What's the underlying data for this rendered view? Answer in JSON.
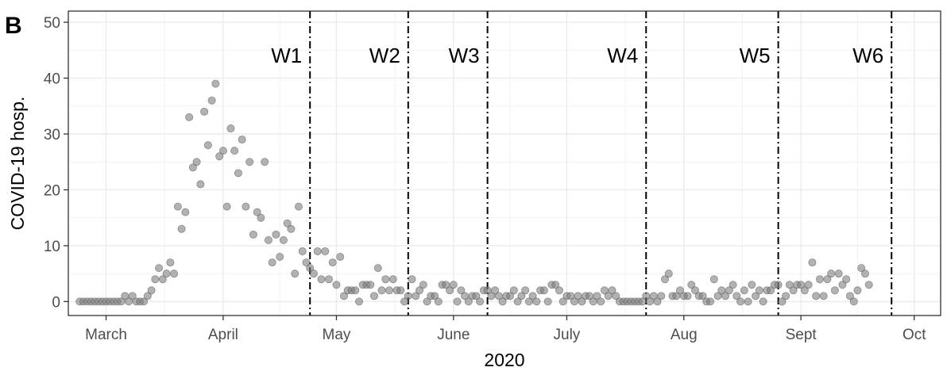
{
  "panel_label": "B",
  "chart_data": {
    "type": "scatter",
    "xlabel": "2020",
    "ylabel": "COVID-19 hosp.",
    "x_unit": "date",
    "xlim": [
      "2020-02-20",
      "2020-10-08"
    ],
    "ylim": [
      -2.5,
      52
    ],
    "y_ticks": [
      0,
      10,
      20,
      30,
      40,
      50
    ],
    "x_ticks": [
      {
        "date": "2020-03-01",
        "label": "March"
      },
      {
        "date": "2020-04-01",
        "label": "April"
      },
      {
        "date": "2020-05-01",
        "label": "May"
      },
      {
        "date": "2020-06-01",
        "label": "June"
      },
      {
        "date": "2020-07-01",
        "label": "July"
      },
      {
        "date": "2020-08-01",
        "label": "Aug"
      },
      {
        "date": "2020-09-01",
        "label": "Sept"
      },
      {
        "date": "2020-10-01",
        "label": "Oct"
      }
    ],
    "grid": true,
    "point_color": "#7f7f7f",
    "vlines": [
      {
        "label": "W1",
        "date": "2020-04-24"
      },
      {
        "label": "W2",
        "date": "2020-05-20"
      },
      {
        "label": "W3",
        "date": "2020-06-10"
      },
      {
        "label": "W4",
        "date": "2020-07-22"
      },
      {
        "label": "W5",
        "date": "2020-08-26"
      },
      {
        "label": "W6",
        "date": "2020-09-25"
      }
    ],
    "start_date": "2020-02-23",
    "values": [
      0,
      0,
      0,
      0,
      0,
      0,
      0,
      0,
      0,
      0,
      0,
      0,
      1,
      0,
      1,
      0,
      0,
      0,
      1,
      2,
      4,
      6,
      4,
      5,
      7,
      5,
      17,
      13,
      16,
      33,
      24,
      25,
      21,
      34,
      28,
      36,
      39,
      26,
      27,
      17,
      31,
      27,
      23,
      29,
      17,
      25,
      12,
      16,
      15,
      25,
      11,
      7,
      12,
      8,
      11,
      14,
      13,
      5,
      17,
      9,
      7,
      6,
      5,
      9,
      4,
      9,
      4,
      7,
      3,
      8,
      1,
      2,
      2,
      2,
      0,
      3,
      3,
      3,
      1,
      6,
      2,
      4,
      2,
      4,
      2,
      2,
      0,
      1,
      4,
      1,
      2,
      3,
      0,
      1,
      1,
      0,
      3,
      3,
      2,
      3,
      0,
      2,
      1,
      0,
      1,
      1,
      0,
      2,
      2,
      1,
      2,
      1,
      0,
      1,
      1,
      2,
      0,
      1,
      2,
      0,
      1,
      0,
      2,
      2,
      0,
      3,
      3,
      2,
      0,
      1,
      1,
      0,
      1,
      0,
      1,
      1,
      0,
      1,
      0,
      2,
      1,
      2,
      1,
      0,
      0,
      0,
      0,
      0,
      0,
      0,
      1,
      0,
      1,
      0,
      1,
      4,
      5,
      1,
      1,
      2,
      1,
      1,
      3,
      2,
      1,
      1,
      0,
      0,
      4,
      1,
      2,
      1,
      2,
      3,
      1,
      0,
      2,
      0,
      3,
      1,
      2,
      0,
      2,
      2,
      3,
      3,
      0,
      1,
      3,
      2,
      3,
      3,
      2,
      3,
      7,
      1,
      4,
      1,
      4,
      5,
      2,
      5,
      3,
      4,
      1,
      0,
      2,
      6,
      5,
      3
    ]
  }
}
